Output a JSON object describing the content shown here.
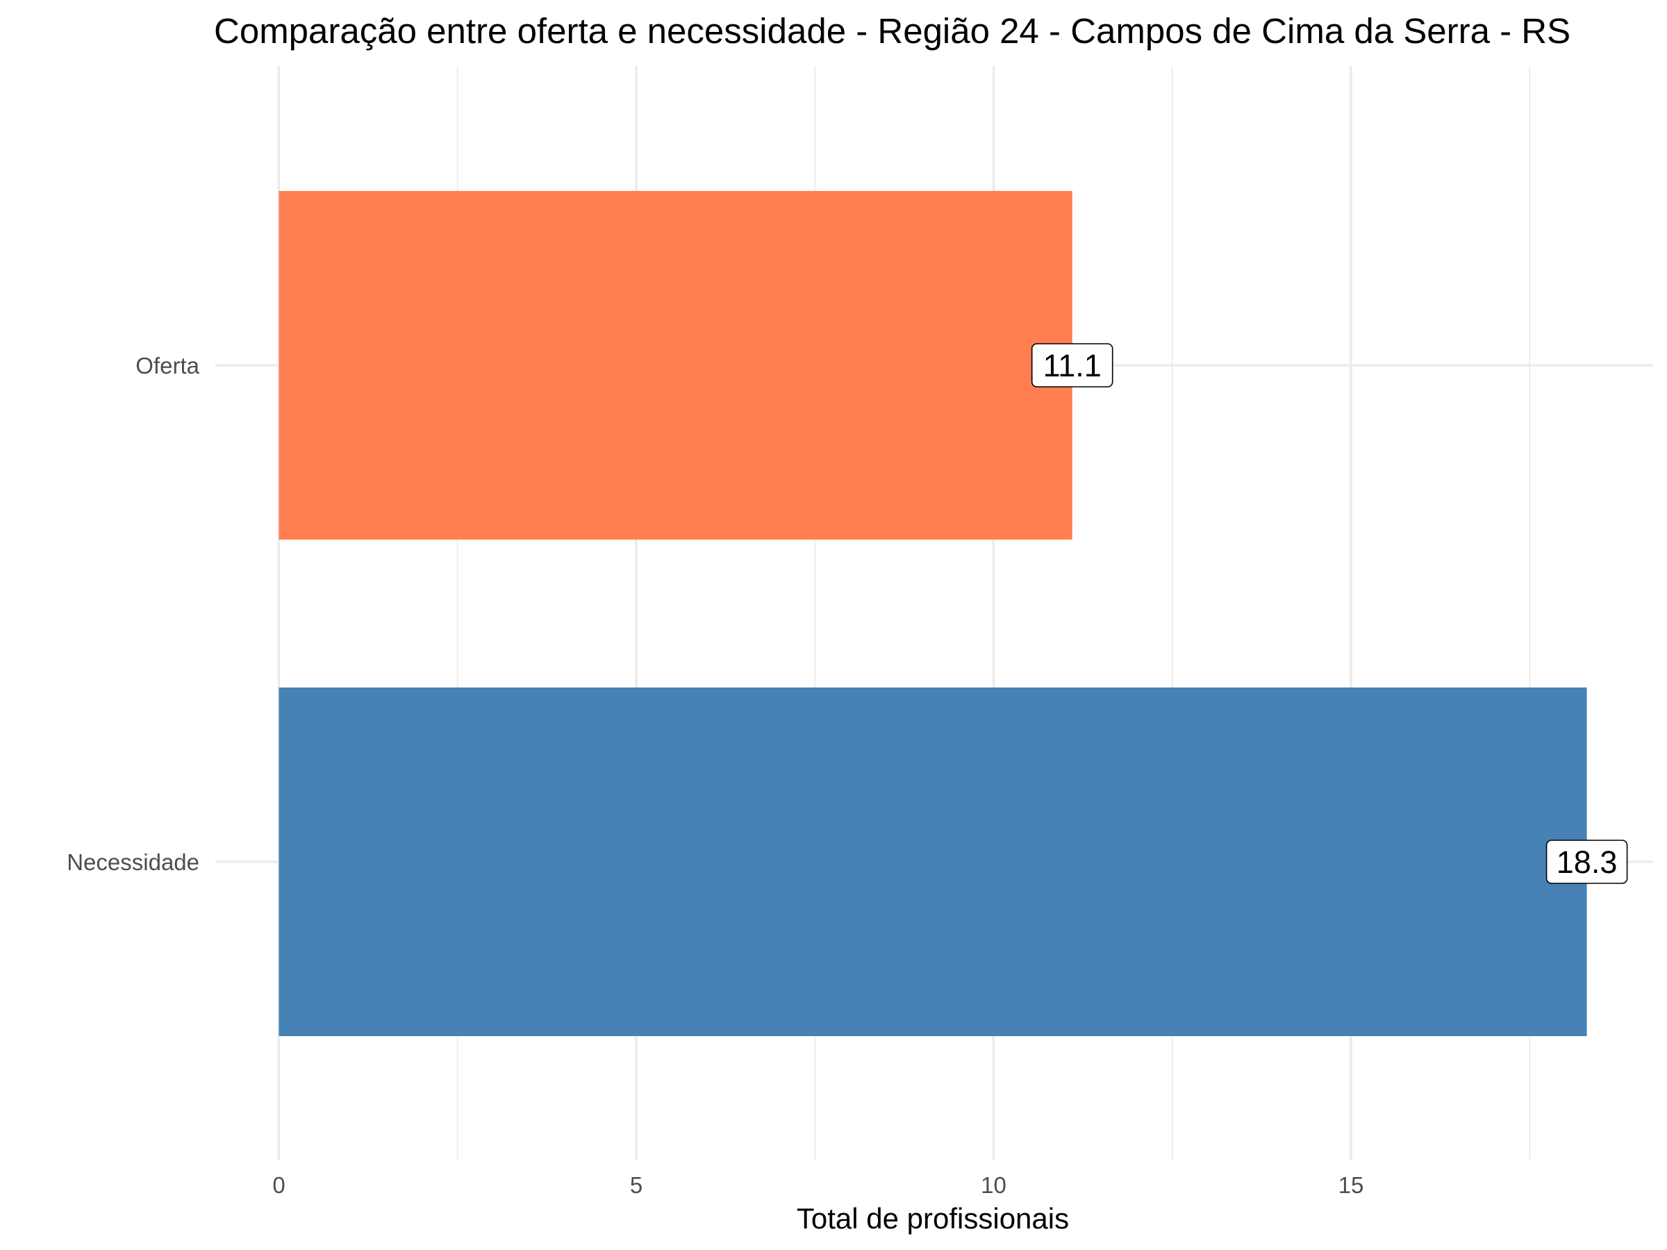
{
  "chart_data": {
    "type": "bar",
    "orientation": "horizontal",
    "title": "Comparação entre oferta e necessidade - Região 24 - Campos de Cima da Serra - RS",
    "xlabel": "Total de profissionais",
    "ylabel": "",
    "categories": [
      "Oferta",
      "Necessidade"
    ],
    "values": [
      11.1,
      18.3
    ],
    "data_labels": [
      "11.1",
      "18.3"
    ],
    "colors": [
      "#FF7F50",
      "#4682B4"
    ],
    "xlim": [
      0,
      19.2
    ],
    "x_ticks": [
      0,
      5,
      10,
      15
    ],
    "x_tick_labels": [
      "0",
      "5",
      "10",
      "15"
    ],
    "grid": true,
    "legend": "none"
  }
}
